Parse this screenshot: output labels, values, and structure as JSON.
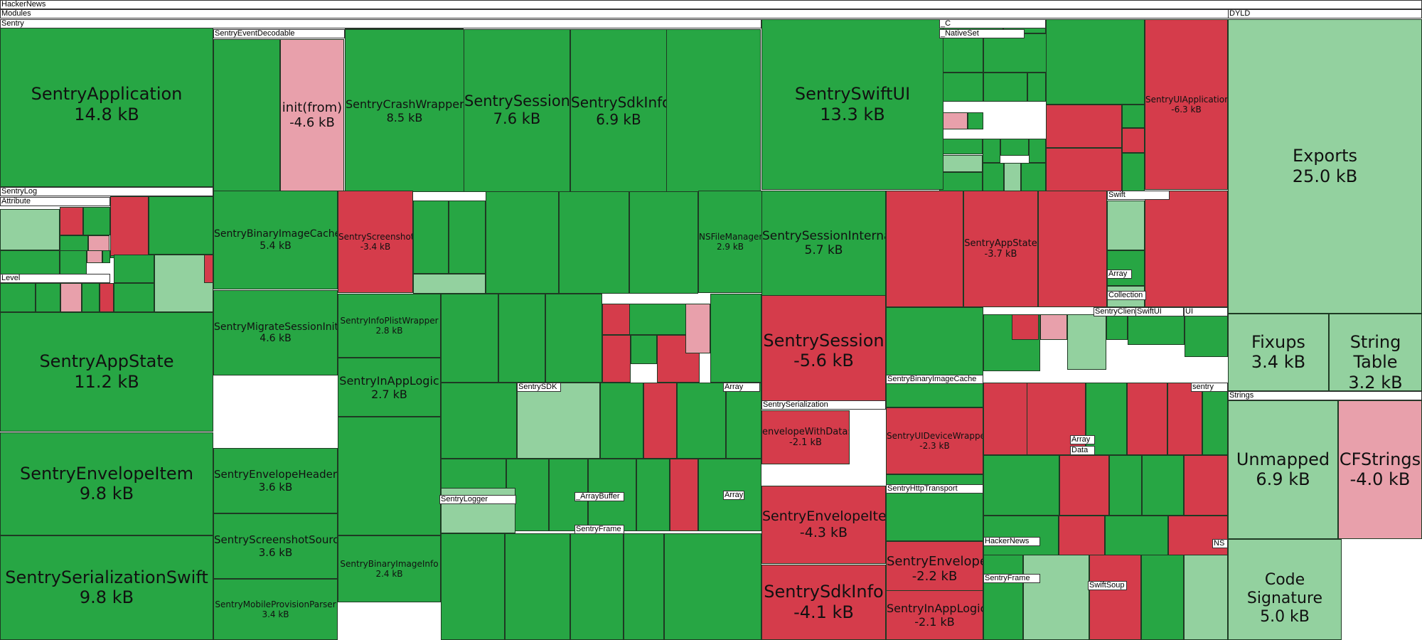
{
  "app": {
    "title": "HackerNews"
  },
  "colors": {
    "grow": "#27a644",
    "growLight": "#93d19f",
    "shrink": "#d53c4b",
    "shrinkLight": "#e8a0ab",
    "header": "#ffffff"
  },
  "chart_data": {
    "type": "treemap",
    "groups": [
      "HackerNews",
      "Modules",
      "Sentry",
      "DYLD",
      "Strings"
    ],
    "items": [
      {
        "group": "Sentry",
        "label": "SentryApplication",
        "value": "14.8 kB",
        "change": "grow"
      },
      {
        "group": "Sentry",
        "label": "init(from)",
        "value": "-4.6 kB",
        "change": "shrink-light"
      },
      {
        "group": "Sentry",
        "label": "SentryCrashWrapper",
        "value": "8.5 kB",
        "change": "grow"
      },
      {
        "group": "Sentry",
        "label": "SentrySession",
        "value": "7.6 kB",
        "change": "grow"
      },
      {
        "group": "Sentry",
        "label": "SentrySdkInfo",
        "value": "6.9 kB",
        "change": "grow"
      },
      {
        "group": "Sentry",
        "label": "SentrySwiftUI",
        "value": "13.3 kB",
        "change": "grow"
      },
      {
        "group": "Sentry",
        "label": "SentryUIApplication",
        "value": "-6.3 kB",
        "change": "shrink"
      },
      {
        "group": "Sentry",
        "label": "SentryBinaryImageCache",
        "value": "5.4 kB",
        "change": "grow"
      },
      {
        "group": "Sentry",
        "label": "SentryScreenshot",
        "value": "-3.4 kB",
        "change": "shrink"
      },
      {
        "group": "Sentry",
        "label": "NSFileManager",
        "value": "2.9 kB",
        "change": "grow"
      },
      {
        "group": "Sentry",
        "label": "SentrySessionInternal",
        "value": "5.7 kB",
        "change": "grow"
      },
      {
        "group": "Sentry",
        "label": "SentryAppState",
        "value": "-3.7 kB",
        "change": "shrink"
      },
      {
        "group": "Sentry",
        "label": "SentryAppState",
        "value": "11.2 kB",
        "change": "grow"
      },
      {
        "group": "Sentry",
        "label": "SentryMigrateSessionInit",
        "value": "4.6 kB",
        "change": "grow"
      },
      {
        "group": "Sentry",
        "label": "SentryInfoPlistWrapper",
        "value": "2.8 kB",
        "change": "grow"
      },
      {
        "group": "Sentry",
        "label": "SentrySession",
        "value": "-5.6 kB",
        "change": "shrink"
      },
      {
        "group": "Sentry",
        "label": "SentryInAppLogic",
        "value": "2.7 kB",
        "change": "grow"
      },
      {
        "group": "Sentry",
        "label": "envelopeWithData:",
        "value": "-2.1 kB",
        "change": "shrink"
      },
      {
        "group": "Sentry",
        "label": "SentryUIDeviceWrapper",
        "value": "-2.3 kB",
        "change": "shrink"
      },
      {
        "group": "Sentry",
        "label": "SentryEnvelopeItem",
        "value": "9.8 kB",
        "change": "grow"
      },
      {
        "group": "Sentry",
        "label": "SentryEnvelopeHeader",
        "value": "3.6 kB",
        "change": "grow"
      },
      {
        "group": "Sentry",
        "label": "SentryEnvelopeItem",
        "value": "-4.3 kB",
        "change": "shrink"
      },
      {
        "group": "Sentry",
        "label": "SentryScreenshotSource",
        "value": "3.6 kB",
        "change": "grow"
      },
      {
        "group": "Sentry",
        "label": "SentryBinaryImageInfo",
        "value": "2.4 kB",
        "change": "grow"
      },
      {
        "group": "Sentry",
        "label": "SentryEnvelope",
        "value": "-2.2 kB",
        "change": "shrink"
      },
      {
        "group": "Sentry",
        "label": "SentrySerializationSwift",
        "value": "9.8 kB",
        "change": "grow"
      },
      {
        "group": "Sentry",
        "label": "SentryMobileProvisionParser",
        "value": "3.4 kB",
        "change": "grow"
      },
      {
        "group": "Sentry",
        "label": "SentrySdkInfo",
        "value": "-4.1 kB",
        "change": "shrink"
      },
      {
        "group": "Sentry",
        "label": "SentryInAppLogic",
        "value": "-2.1 kB",
        "change": "shrink"
      },
      {
        "group": "DYLD",
        "label": "Exports",
        "value": "25.0 kB",
        "change": "grow-light"
      },
      {
        "group": "DYLD",
        "label": "Fixups",
        "value": "3.4 kB",
        "change": "grow-light"
      },
      {
        "group": "DYLD",
        "label": "String Table",
        "value": "3.2 kB",
        "change": "grow-light"
      },
      {
        "group": "Strings",
        "label": "Unmapped",
        "value": "6.9 kB",
        "change": "grow-light"
      },
      {
        "group": "Strings",
        "label": "CFStrings",
        "value": "-4.0 kB",
        "change": "shrink-light"
      },
      {
        "group": "DYLD",
        "label": "Code Signature",
        "value": "5.0 kB",
        "change": "grow-light"
      }
    ],
    "section_headers": [
      "HackerNews",
      "Modules",
      "Sentry",
      "DYLD",
      "SentryEventDecodable",
      "_C",
      "_NativeSet",
      "SentryLog",
      "Attribute",
      "Level",
      "Swift",
      "Array",
      "Collection",
      "SentryClient",
      "SwiftUI",
      "UI",
      "SentryBinaryImageCache",
      "SentrySerialization",
      "SentrySDK",
      "Array",
      "sentry",
      "Strings",
      "Array",
      "Data",
      "SentryLogger",
      "_ArrayBuffer",
      "SentryFrame",
      "SentryHttpTransport",
      "HackerNews",
      "SentryFrame",
      "SwiftSoup",
      "NS",
      "Array"
    ]
  }
}
